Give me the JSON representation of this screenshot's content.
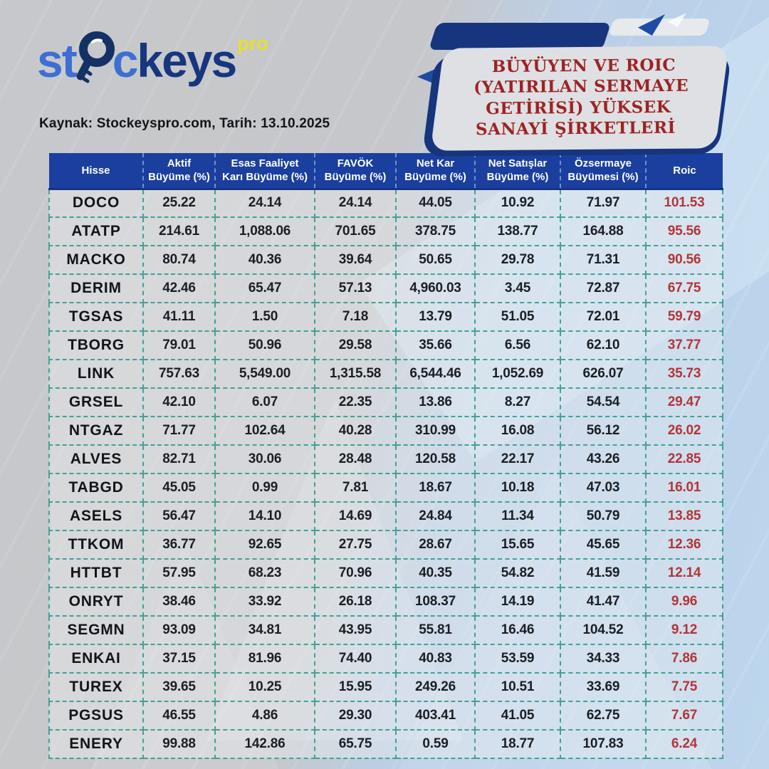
{
  "logo": {
    "st": "st",
    "c": "c",
    "keys": "keys",
    "pro": "pro",
    "icon": "magnifier-key-icon"
  },
  "source_line": "Kaynak: Stockeyspro.com, Tarih: 13.10.2025",
  "badge": {
    "lines": [
      "BÜYÜYEN VE ROIC",
      "(YATIRILAN SERMAYE",
      "GETİRİSİ) YÜKSEK",
      "SANAYİ ŞİRKETLERİ"
    ]
  },
  "colors": {
    "header_blue": "#1b3f9e",
    "badge_navy": "#16357e",
    "badge_red": "#9c2323",
    "roic_red": "#b23537",
    "dash_teal": "#43a195",
    "logo_blue": "#3d6fd3",
    "logo_navy": "#16377f",
    "pro_yellow": "#e6df2f"
  },
  "chart_data": {
    "type": "table",
    "title": "BÜYÜYEN VE ROIC (YATIRILAN SERMAYE GETİRİSİ) YÜKSEK SANAYİ ŞİRKETLERİ",
    "columns": [
      "Hisse",
      "Aktif Büyüme (%)",
      "Esas Faaliyet Karı Büyüme (%)",
      "FAVÖK Büyüme (%)",
      "Net Kar Büyüme (%)",
      "Net Satışlar Büyüme (%)",
      "Özsermaye Büyümesi (%)",
      "Roic"
    ],
    "rows": [
      [
        "DOCO",
        "25.22",
        "24.14",
        "24.14",
        "44.05",
        "10.92",
        "71.97",
        "101.53"
      ],
      [
        "ATATP",
        "214.61",
        "1,088.06",
        "701.65",
        "378.75",
        "138.77",
        "164.88",
        "95.56"
      ],
      [
        "MACKO",
        "80.74",
        "40.36",
        "39.64",
        "50.65",
        "29.78",
        "71.31",
        "90.56"
      ],
      [
        "DERIM",
        "42.46",
        "65.47",
        "57.13",
        "4,960.03",
        "3.45",
        "72.87",
        "67.75"
      ],
      [
        "TGSAS",
        "41.11",
        "1.50",
        "7.18",
        "13.79",
        "51.05",
        "72.01",
        "59.79"
      ],
      [
        "TBORG",
        "79.01",
        "50.96",
        "29.58",
        "35.66",
        "6.56",
        "62.10",
        "37.77"
      ],
      [
        "LINK",
        "757.63",
        "5,549.00",
        "1,315.58",
        "6,544.46",
        "1,052.69",
        "626.07",
        "35.73"
      ],
      [
        "GRSEL",
        "42.10",
        "6.07",
        "22.35",
        "13.86",
        "8.27",
        "54.54",
        "29.47"
      ],
      [
        "NTGAZ",
        "71.77",
        "102.64",
        "40.28",
        "310.99",
        "16.08",
        "56.12",
        "26.02"
      ],
      [
        "ALVES",
        "82.71",
        "30.06",
        "28.48",
        "120.58",
        "22.17",
        "43.26",
        "22.85"
      ],
      [
        "TABGD",
        "45.05",
        "0.99",
        "7.81",
        "18.67",
        "10.18",
        "47.03",
        "16.01"
      ],
      [
        "ASELS",
        "56.47",
        "14.10",
        "14.69",
        "24.84",
        "11.34",
        "50.79",
        "13.85"
      ],
      [
        "TTKOM",
        "36.77",
        "92.65",
        "27.75",
        "28.67",
        "15.65",
        "45.65",
        "12.36"
      ],
      [
        "HTTBT",
        "57.95",
        "68.23",
        "70.96",
        "40.35",
        "54.82",
        "41.59",
        "12.14"
      ],
      [
        "ONRYT",
        "38.46",
        "33.92",
        "26.18",
        "108.37",
        "14.19",
        "41.47",
        "9.96"
      ],
      [
        "SEGMN",
        "93.09",
        "34.81",
        "43.95",
        "55.81",
        "16.46",
        "104.52",
        "9.12"
      ],
      [
        "ENKAI",
        "37.15",
        "81.96",
        "74.40",
        "40.83",
        "53.59",
        "34.33",
        "7.86"
      ],
      [
        "TUREX",
        "39.65",
        "10.25",
        "15.95",
        "249.26",
        "10.51",
        "33.69",
        "7.75"
      ],
      [
        "PGSUS",
        "46.55",
        "4.86",
        "29.30",
        "403.41",
        "41.05",
        "62.75",
        "7.67"
      ],
      [
        "ENERY",
        "99.88",
        "142.86",
        "65.75",
        "0.59",
        "18.77",
        "107.83",
        "6.24"
      ]
    ]
  }
}
